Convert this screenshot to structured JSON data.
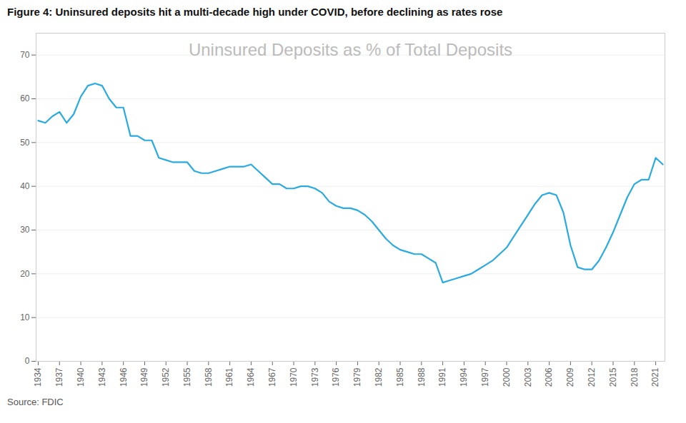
{
  "chart_data": {
    "type": "line",
    "title": "Figure 4: Uninsured deposits hit a multi-decade high under COVID, before declining as rates rose",
    "subtitle": "Uninsured Deposits as % of Total Deposits",
    "source": "Source: FDIC",
    "x": [
      1934,
      1935,
      1936,
      1937,
      1938,
      1939,
      1940,
      1941,
      1942,
      1943,
      1944,
      1945,
      1946,
      1947,
      1948,
      1949,
      1950,
      1951,
      1952,
      1953,
      1954,
      1955,
      1956,
      1957,
      1958,
      1959,
      1960,
      1961,
      1962,
      1963,
      1964,
      1965,
      1966,
      1967,
      1968,
      1969,
      1970,
      1971,
      1972,
      1973,
      1974,
      1975,
      1976,
      1977,
      1978,
      1979,
      1980,
      1981,
      1982,
      1983,
      1984,
      1985,
      1986,
      1987,
      1988,
      1989,
      1990,
      1991,
      1992,
      1993,
      1994,
      1995,
      1996,
      1997,
      1998,
      1999,
      2000,
      2001,
      2002,
      2003,
      2004,
      2005,
      2006,
      2007,
      2008,
      2009,
      2010,
      2011,
      2012,
      2013,
      2014,
      2015,
      2016,
      2017,
      2018,
      2019,
      2020,
      2021,
      2022
    ],
    "values": [
      55.0,
      54.5,
      56.0,
      57.0,
      54.5,
      56.5,
      60.5,
      63.0,
      63.5,
      63.0,
      60.0,
      58.0,
      58.0,
      51.5,
      51.5,
      50.5,
      50.5,
      46.5,
      46.0,
      45.5,
      45.5,
      45.5,
      43.5,
      43.0,
      43.0,
      43.5,
      44.0,
      44.5,
      44.5,
      44.5,
      45.0,
      43.5,
      42.0,
      40.5,
      40.5,
      39.5,
      39.5,
      40.0,
      40.0,
      39.5,
      38.5,
      36.5,
      35.5,
      35.0,
      35.0,
      34.5,
      33.5,
      32.0,
      30.0,
      28.0,
      26.5,
      25.5,
      25.0,
      24.5,
      24.5,
      23.5,
      22.5,
      18.0,
      18.5,
      19.0,
      19.5,
      20.0,
      21.0,
      22.0,
      23.0,
      24.5,
      26.0,
      28.5,
      31.0,
      33.5,
      36.0,
      38.0,
      38.5,
      38.0,
      34.0,
      26.5,
      21.5,
      21.0,
      21.0,
      23.0,
      26.0,
      29.5,
      33.5,
      37.5,
      40.5,
      41.5,
      41.5,
      46.5,
      45.0
    ],
    "color": "#29ABE2",
    "xlim": [
      1933.7,
      2022.3
    ],
    "xticks": [
      1934,
      1937,
      1940,
      1943,
      1946,
      1949,
      1952,
      1955,
      1958,
      1961,
      1964,
      1967,
      1970,
      1973,
      1976,
      1979,
      1982,
      1985,
      1988,
      1991,
      1994,
      1997,
      2000,
      2003,
      2006,
      2009,
      2012,
      2015,
      2018,
      2021
    ],
    "ylim": [
      0,
      75
    ],
    "yticks": [
      0,
      10,
      20,
      30,
      40,
      50,
      60,
      70
    ],
    "grid": "y"
  }
}
